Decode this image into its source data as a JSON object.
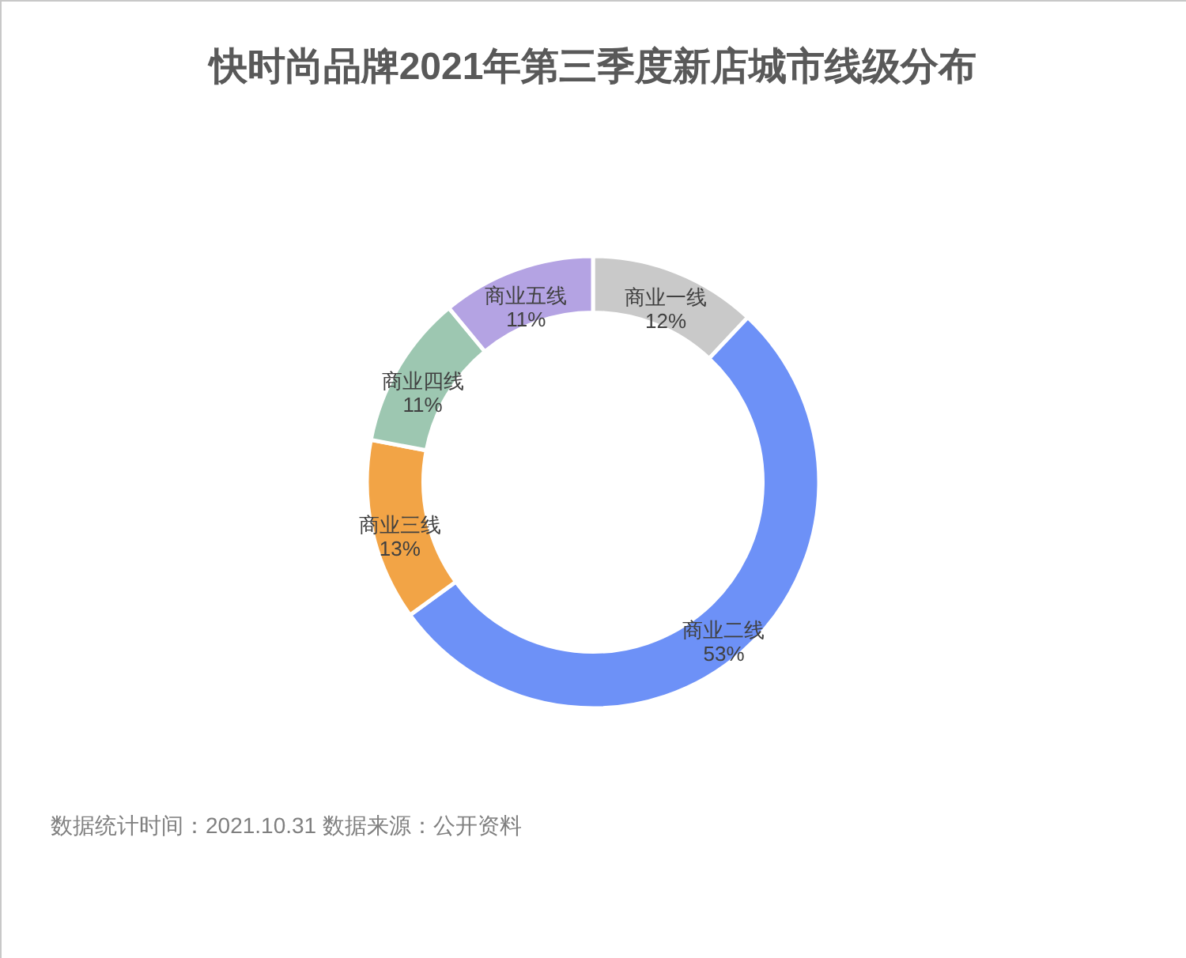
{
  "chart_data": {
    "type": "donut",
    "title": "快时尚品牌2021年第三季度新店城市线级分布",
    "categories": [
      "商业一线",
      "商业二线",
      "商业三线",
      "商业四线",
      "商业五线"
    ],
    "values": [
      12,
      53,
      13,
      11,
      11
    ],
    "colors": [
      "#c9c9c9",
      "#6d91f7",
      "#f2a446",
      "#9dc7b1",
      "#b4a3e3"
    ],
    "value_labels": [
      "12%",
      "53%",
      "13%",
      "11%",
      "11%"
    ],
    "annotations": [
      "数据统计时间：2021.10.31  数据来源：公开资料"
    ]
  }
}
